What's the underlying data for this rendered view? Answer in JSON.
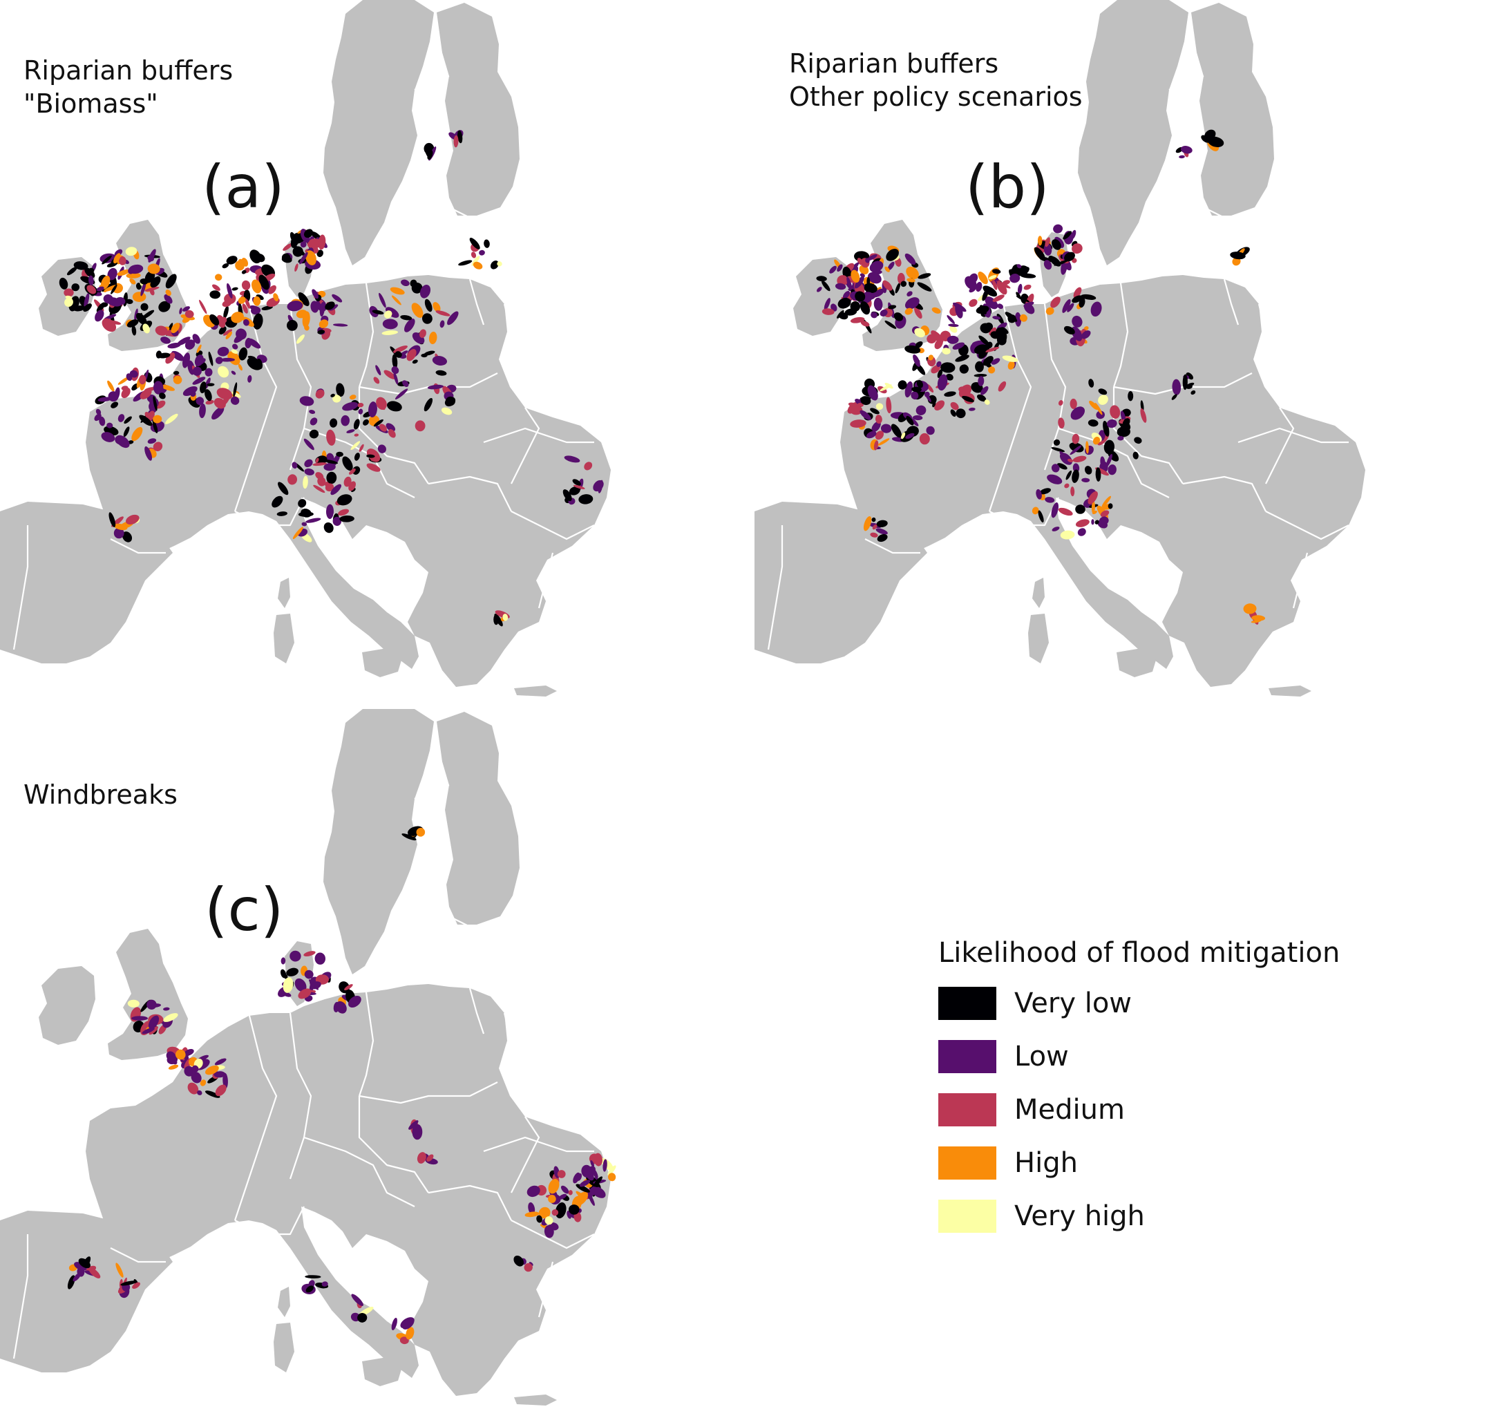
{
  "panels": [
    {
      "id": "a",
      "title_line1": "Riparian buffers",
      "title_line2": "\"Biomass\"",
      "label": "(a)"
    },
    {
      "id": "b",
      "title_line1": "Riparian buffers",
      "title_line2": "Other policy scenarios",
      "label": "(b)"
    },
    {
      "id": "c",
      "title_line1": "Windbreaks",
      "title_line2": "",
      "label": "(c)"
    }
  ],
  "colors": {
    "land": "#c0c0c0",
    "border": "#ffffff",
    "background": "#ffffff"
  },
  "legend": {
    "title": "Likelihood of flood mitigation",
    "items": [
      {
        "label": "Very low",
        "color": "#000004"
      },
      {
        "label": "Low",
        "color": "#570f6d"
      },
      {
        "label": "Medium",
        "color": "#bb3754"
      },
      {
        "label": "High",
        "color": "#f98c0a"
      },
      {
        "label": "Very high",
        "color": "#fcffa4"
      }
    ]
  }
}
